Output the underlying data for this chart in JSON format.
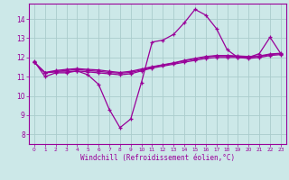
{
  "xlabel": "Windchill (Refroidissement éolien,°C)",
  "bg_color": "#cce8e8",
  "line_color": "#990099",
  "grid_color": "#aacccc",
  "xlim": [
    -0.5,
    23.5
  ],
  "ylim": [
    7.5,
    14.8
  ],
  "xticks": [
    0,
    1,
    2,
    3,
    4,
    5,
    6,
    7,
    8,
    9,
    10,
    11,
    12,
    13,
    14,
    15,
    16,
    17,
    18,
    19,
    20,
    21,
    22,
    23
  ],
  "yticks": [
    8,
    9,
    10,
    11,
    12,
    13,
    14
  ],
  "curve1": [
    11.8,
    11.0,
    11.2,
    11.2,
    11.3,
    11.1,
    10.6,
    9.3,
    8.35,
    8.8,
    10.7,
    12.8,
    12.9,
    13.2,
    13.8,
    14.5,
    14.2,
    13.5,
    12.4,
    12.0,
    12.0,
    12.2,
    13.05,
    12.2
  ],
  "curve2": [
    11.75,
    11.2,
    11.25,
    11.25,
    11.3,
    11.25,
    11.2,
    11.15,
    11.1,
    11.15,
    11.3,
    11.45,
    11.55,
    11.65,
    11.75,
    11.85,
    11.95,
    12.0,
    12.0,
    12.0,
    11.95,
    12.0,
    12.1,
    12.15
  ],
  "curve3": [
    11.75,
    11.2,
    11.28,
    11.32,
    11.38,
    11.32,
    11.28,
    11.22,
    11.18,
    11.22,
    11.35,
    11.5,
    11.6,
    11.7,
    11.82,
    11.92,
    12.02,
    12.08,
    12.08,
    12.05,
    12.02,
    12.05,
    12.15,
    12.2
  ],
  "curve4": [
    11.75,
    11.22,
    11.32,
    11.38,
    11.42,
    11.38,
    11.35,
    11.28,
    11.22,
    11.28,
    11.4,
    11.52,
    11.62,
    11.72,
    11.85,
    11.95,
    12.05,
    12.1,
    12.1,
    12.08,
    12.05,
    12.08,
    12.18,
    12.22
  ]
}
